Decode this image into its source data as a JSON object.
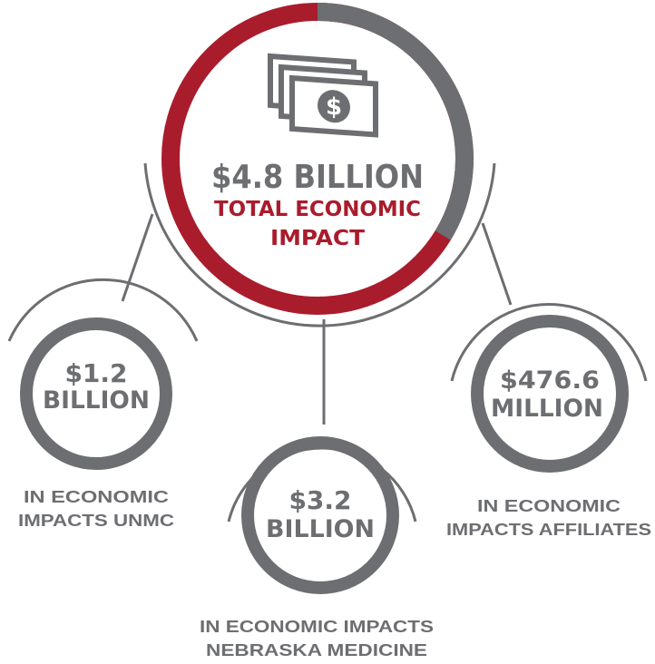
{
  "total": {
    "amount": "$4.8 BILLION",
    "line1": "TOTAL ECONOMIC",
    "line2": "IMPACT",
    "icon": "money-bills-icon",
    "currency_symbol": "$",
    "ring_colors": {
      "primary": "#a91c2c",
      "secondary": "#6d6e71"
    }
  },
  "breakdown": [
    {
      "amount_line1": "$1.2",
      "amount_line2": "BILLION",
      "caption_line1": "IN ECONOMIC",
      "caption_line2": "IMPACTS UNMC"
    },
    {
      "amount_line1": "$3.2",
      "amount_line2": "BILLION",
      "caption_line1": "IN ECONOMIC IMPACTS",
      "caption_line2": "NEBRASKA MEDICINE"
    },
    {
      "amount_line1": "$476.6",
      "amount_line2": "MILLION",
      "caption_line1": "IN ECONOMIC",
      "caption_line2": "IMPACTS AFFILIATES"
    }
  ],
  "colors": {
    "red": "#a91c2c",
    "gray": "#6d6e71",
    "text": "#6d6e71"
  }
}
